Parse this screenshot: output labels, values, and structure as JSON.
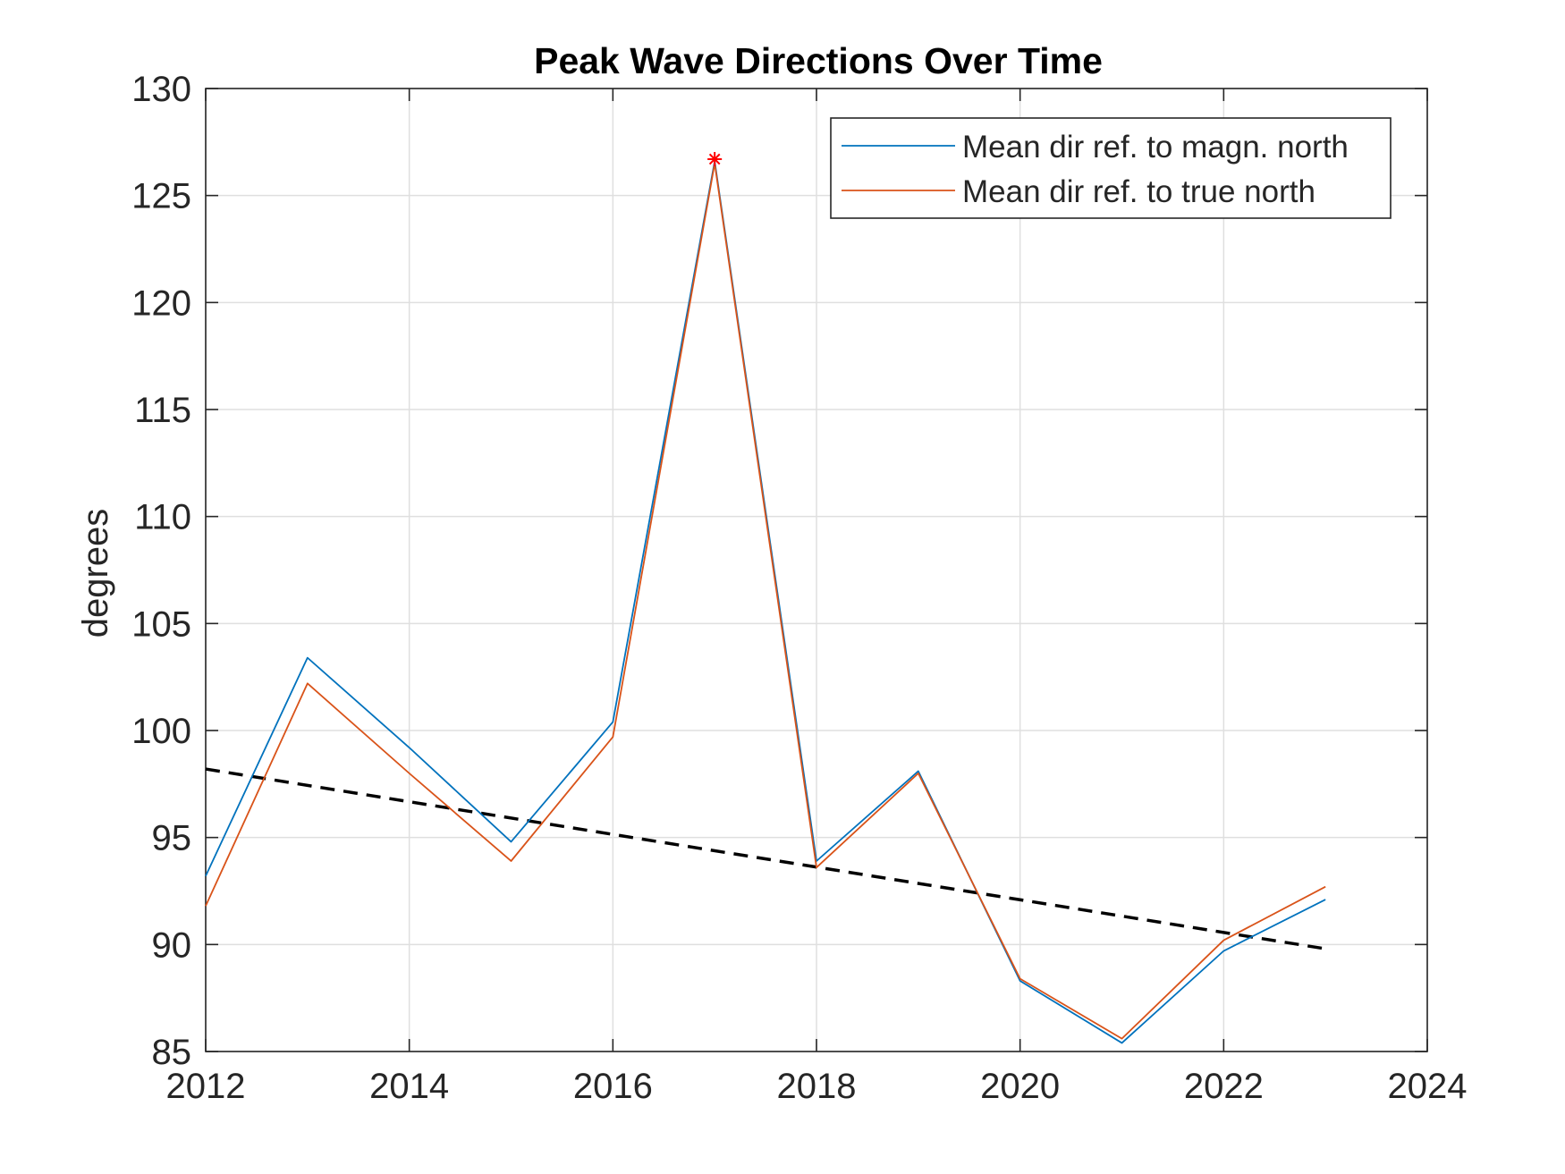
{
  "chart_data": {
    "type": "line",
    "title": "Peak Wave Directions Over Time",
    "xlabel": "",
    "ylabel": "degrees",
    "xlim": [
      2012,
      2024
    ],
    "ylim": [
      85,
      130
    ],
    "xticks": [
      2012,
      2014,
      2016,
      2018,
      2020,
      2022,
      2024
    ],
    "yticks": [
      85,
      90,
      95,
      100,
      105,
      110,
      115,
      120,
      125,
      130
    ],
    "grid": true,
    "legend_position": "top-right",
    "x": [
      2012,
      2013,
      2014,
      2015,
      2016,
      2017,
      2018,
      2019,
      2020,
      2021,
      2022,
      2023
    ],
    "series": [
      {
        "name": "Mean dir ref. to magn. north",
        "color": "#0072BD",
        "values": [
          93.2,
          103.4,
          99.2,
          94.8,
          100.4,
          126.6,
          93.9,
          98.1,
          88.3,
          85.4,
          89.7,
          92.1
        ]
      },
      {
        "name": "Mean dir ref. to true north",
        "color": "#D95319",
        "values": [
          91.8,
          102.2,
          98.0,
          93.9,
          99.7,
          126.5,
          93.6,
          98.0,
          88.4,
          85.6,
          90.2,
          92.7
        ]
      }
    ],
    "trend_line": {
      "color": "#000000",
      "style": "dashed",
      "x": [
        2012,
        2023
      ],
      "y": [
        98.2,
        89.8
      ]
    },
    "peak_marker": {
      "x": 2017,
      "y": 126.7,
      "color": "#FF0000",
      "symbol": "asterisk"
    }
  }
}
